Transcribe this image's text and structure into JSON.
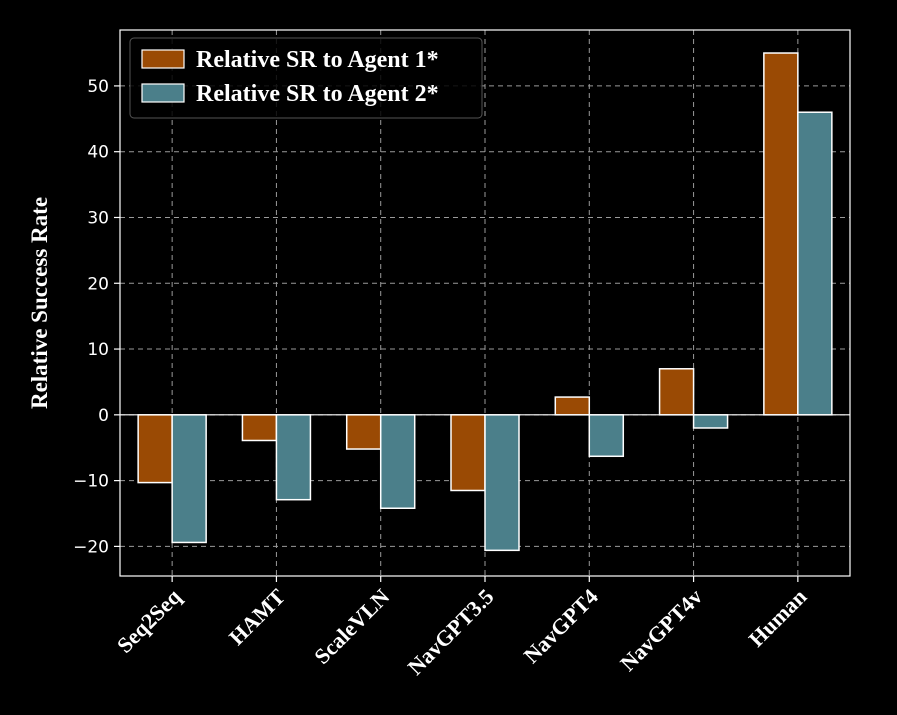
{
  "chart_data": {
    "type": "bar",
    "title": "",
    "xlabel": "",
    "ylabel": "Relative Success Rate",
    "categories": [
      "Seq2Seq",
      "HAMT",
      "ScaleVLN",
      "NavGPT3.5",
      "NavGPT4",
      "NavGPT4v",
      "Human"
    ],
    "series": [
      {
        "name": "Relative SR to Agent 1*",
        "color": "#9a4a04",
        "values": [
          -10.3,
          -3.9,
          -5.2,
          -11.5,
          2.7,
          7.0,
          55.0
        ]
      },
      {
        "name": "Relative SR to Agent 2*",
        "color": "#4b7f8a",
        "values": [
          -19.4,
          -12.9,
          -14.2,
          -20.6,
          -6.3,
          -2.0,
          46.0
        ]
      }
    ],
    "ylim": [
      -24.5,
      58.5
    ],
    "yticks": [
      -20,
      -10,
      0,
      10,
      20,
      30,
      40,
      50
    ],
    "ytick_labels": [
      "−20",
      "−10",
      "0",
      "10",
      "20",
      "30",
      "40",
      "50"
    ],
    "grid": true,
    "legend": "top-left",
    "colors": {
      "background": "#000000",
      "axes": "#ffffff",
      "grid": "#9a9a9a",
      "bar_edge": "#ffffff"
    }
  }
}
